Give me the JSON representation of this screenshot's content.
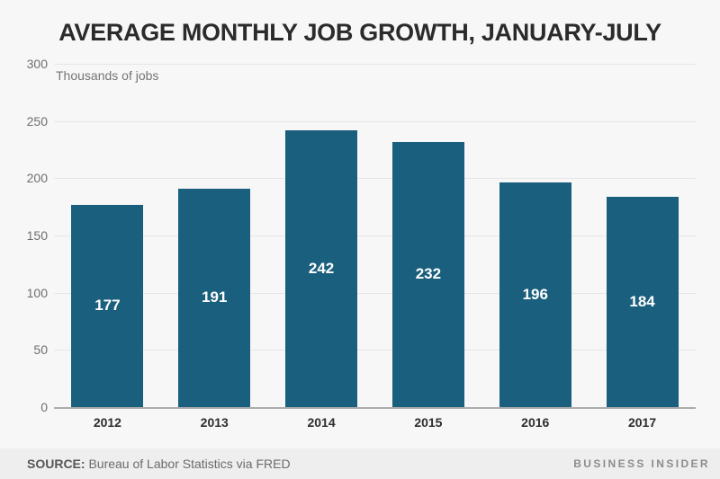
{
  "chart_data": {
    "type": "bar",
    "title": "AVERAGE MONTHLY JOB GROWTH, JANUARY-JULY",
    "categories": [
      "2012",
      "2013",
      "2014",
      "2015",
      "2016",
      "2017"
    ],
    "values": [
      177,
      191,
      242,
      232,
      196,
      184
    ],
    "xlabel": "",
    "ylabel": "Thousands of jobs",
    "ylim": [
      0,
      300
    ],
    "yticks": [
      0,
      50,
      100,
      150,
      200,
      250,
      300
    ],
    "grid": true,
    "legend": "none",
    "bar_color": "#1a5f7d",
    "value_label_color": "#ffffff"
  },
  "footer": {
    "source_prefix": "SOURCE:",
    "source_text": "Bureau of Labor Statistics via FRED",
    "brand": "BUSINESS INSIDER"
  },
  "colors": {
    "background": "#f7f7f7",
    "footer_background": "#eeeeee",
    "gridline": "#e6e6e6",
    "baseline": "#acacac",
    "title_text": "#2b2b2b",
    "axis_text": "#6f6f6f"
  }
}
